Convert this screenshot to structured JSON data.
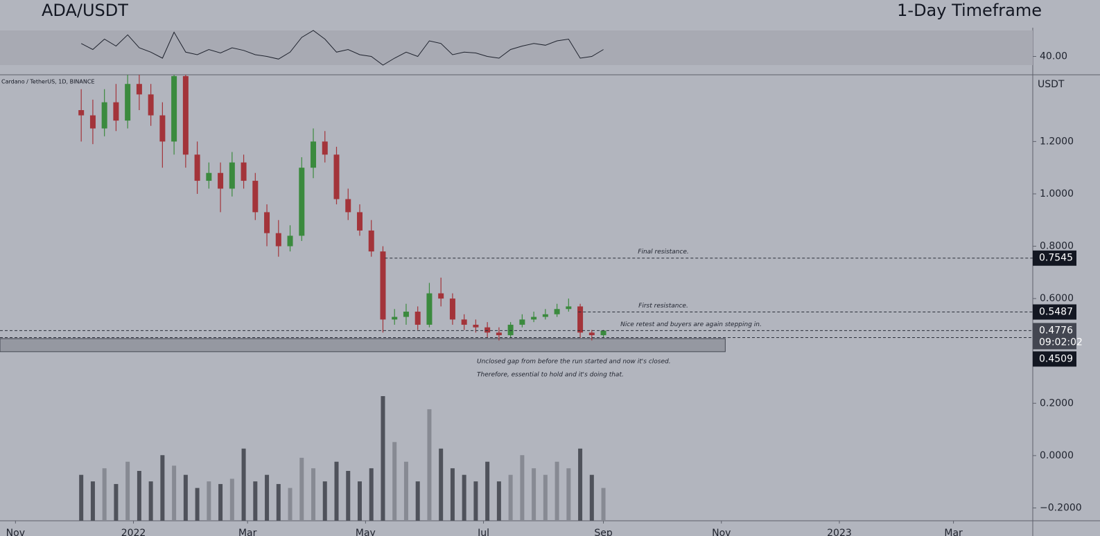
{
  "chart_data": {
    "type": "candlestick",
    "title": "ADA/USDT",
    "subtitle": "1-Day Timeframe",
    "symbol": "Cardano / TetherUS, 1D, BINANCE",
    "currency": "USDT",
    "up_color": "#3b8a3e",
    "down_color": "#a3343a",
    "x": [
      42,
      48,
      54,
      60,
      66,
      72,
      78,
      84,
      90,
      96,
      102,
      108,
      114,
      120,
      126,
      132,
      138,
      144,
      150,
      156,
      162,
      168,
      174,
      180,
      186,
      192,
      198,
      204,
      210,
      216,
      222,
      228,
      234,
      240,
      246,
      252,
      258,
      264,
      270,
      276,
      282,
      288,
      294,
      300,
      306,
      312
    ],
    "open": [
      1.32,
      1.3,
      1.25,
      1.35,
      1.28,
      1.42,
      1.38,
      1.3,
      1.2,
      1.45,
      1.15,
      1.05,
      1.08,
      1.02,
      1.12,
      1.05,
      0.93,
      0.85,
      0.8,
      0.84,
      1.1,
      1.2,
      1.15,
      0.98,
      0.93,
      0.86,
      0.78,
      0.52,
      0.53,
      0.55,
      0.5,
      0.62,
      0.6,
      0.52,
      0.5,
      0.49,
      0.47,
      0.46,
      0.5,
      0.52,
      0.53,
      0.54,
      0.56,
      0.57,
      0.47,
      0.46
    ],
    "high": [
      1.4,
      1.36,
      1.4,
      1.42,
      1.46,
      1.48,
      1.42,
      1.35,
      1.5,
      1.48,
      1.2,
      1.12,
      1.12,
      1.16,
      1.15,
      1.08,
      0.96,
      0.9,
      0.88,
      1.14,
      1.25,
      1.24,
      1.18,
      1.02,
      0.96,
      0.9,
      0.8,
      0.56,
      0.58,
      0.57,
      0.66,
      0.68,
      0.62,
      0.54,
      0.52,
      0.51,
      0.49,
      0.51,
      0.54,
      0.55,
      0.56,
      0.58,
      0.6,
      0.58,
      0.48,
      0.48
    ],
    "low": [
      1.2,
      1.19,
      1.22,
      1.24,
      1.25,
      1.32,
      1.26,
      1.1,
      1.15,
      1.1,
      1.0,
      1.02,
      0.93,
      0.99,
      1.02,
      0.9,
      0.8,
      0.76,
      0.78,
      0.82,
      1.06,
      1.12,
      0.96,
      0.9,
      0.84,
      0.76,
      0.47,
      0.5,
      0.5,
      0.48,
      0.49,
      0.57,
      0.5,
      0.48,
      0.47,
      0.45,
      0.44,
      0.45,
      0.49,
      0.51,
      0.52,
      0.53,
      0.55,
      0.45,
      0.44,
      0.45
    ],
    "close": [
      1.3,
      1.25,
      1.35,
      1.28,
      1.42,
      1.38,
      1.3,
      1.2,
      1.45,
      1.15,
      1.05,
      1.08,
      1.02,
      1.12,
      1.05,
      0.93,
      0.85,
      0.8,
      0.84,
      1.1,
      1.2,
      1.15,
      0.98,
      0.93,
      0.86,
      0.78,
      0.52,
      0.53,
      0.55,
      0.5,
      0.62,
      0.6,
      0.52,
      0.5,
      0.49,
      0.47,
      0.46,
      0.5,
      0.52,
      0.53,
      0.54,
      0.56,
      0.57,
      0.47,
      0.46,
      0.4776
    ],
    "volume": [
      35,
      30,
      40,
      28,
      45,
      38,
      30,
      50,
      42,
      35,
      25,
      30,
      28,
      32,
      55,
      30,
      35,
      28,
      25,
      48,
      40,
      30,
      45,
      38,
      30,
      40,
      95,
      60,
      45,
      30,
      85,
      55,
      40,
      35,
      30,
      45,
      30,
      35,
      50,
      40,
      35,
      45,
      40,
      55,
      35,
      25
    ],
    "rsi": [
      55,
      48,
      60,
      52,
      65,
      50,
      45,
      38,
      68,
      45,
      42,
      48,
      44,
      50,
      47,
      42,
      40,
      37,
      45,
      62,
      70,
      60,
      45,
      48,
      42,
      40,
      30,
      38,
      45,
      40,
      58,
      55,
      42,
      45,
      44,
      40,
      38,
      48,
      52,
      55,
      53,
      58,
      60,
      38,
      40,
      48
    ],
    "rsi_band": [
      30,
      70
    ],
    "rsi_ylim": [
      18.8,
      73.2
    ],
    "rsi_yticks": [
      {
        "value": 40,
        "label": "40.00"
      }
    ],
    "xlim": [
      0,
      534
    ],
    "xticks": [
      {
        "value": 8,
        "label": "Nov"
      },
      {
        "value": 69,
        "label": "2022"
      },
      {
        "value": 128,
        "label": "Mar"
      },
      {
        "value": 189,
        "label": "May"
      },
      {
        "value": 250,
        "label": "Jul"
      },
      {
        "value": 312,
        "label": "Sep"
      },
      {
        "value": 373,
        "label": "Nov"
      },
      {
        "value": 434,
        "label": "2023"
      },
      {
        "value": 493,
        "label": "Mar"
      }
    ],
    "ylim": [
      -0.249,
      1.455
    ],
    "yticks": [
      {
        "value": 1.2,
        "label": "1.2000"
      },
      {
        "value": 1,
        "label": "1.0000"
      },
      {
        "value": 0.8,
        "label": "0.8000"
      },
      {
        "value": 0.6,
        "label": "0.6000"
      },
      {
        "value": 0.2,
        "label": "0.2000"
      },
      {
        "value": 0,
        "label": "0.0000"
      },
      {
        "value": -0.2,
        "label": "−0.2000"
      }
    ],
    "levels": [
      {
        "value": 0.7545,
        "x": 199,
        "note": "Final resistance."
      },
      {
        "value": 0.5487,
        "x": 299,
        "note": "First resistance."
      },
      {
        "value": 0.4776,
        "x": 0,
        "note": "Nice retest and buyers are again stepping in.",
        "countdown": "09:02:02"
      },
      {
        "value": 0.4509,
        "x": 0
      }
    ],
    "zone": {
      "range": [
        0.397,
        0.447
      ],
      "x": [
        0,
        375
      ],
      "notes": [
        "Unclosed gap from before the run started and now it's closed.",
        "Therefore, essential to hold and it's doing that."
      ]
    }
  }
}
